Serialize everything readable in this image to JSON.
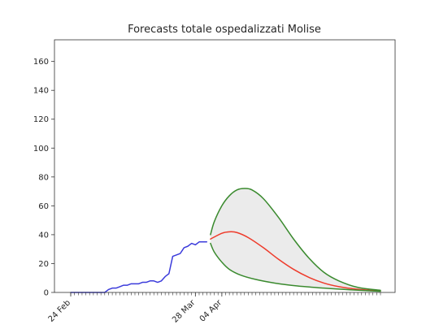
{
  "chart_data": {
    "type": "line",
    "title": "Forecasts totale ospedalizzati Molise",
    "xlabel": "",
    "ylabel": "",
    "ylim": [
      0,
      175
    ],
    "yticks": [
      0,
      20,
      40,
      60,
      80,
      100,
      120,
      140,
      160
    ],
    "x_start": "2020-02-24",
    "x_end": "2020-05-16",
    "xticks": [
      {
        "date": "2020-02-24",
        "label": "24 Feb"
      },
      {
        "date": "2020-03-28",
        "label": "28 Mar"
      },
      {
        "date": "2020-04-04",
        "label": "04 Apr"
      }
    ],
    "grid": false,
    "series": [
      {
        "role": "observed",
        "color": "#3b3bdb",
        "points": [
          [
            "2020-02-24",
            0
          ],
          [
            "2020-02-25",
            0
          ],
          [
            "2020-02-26",
            0
          ],
          [
            "2020-02-27",
            0
          ],
          [
            "2020-02-28",
            0
          ],
          [
            "2020-02-29",
            0
          ],
          [
            "2020-03-01",
            0
          ],
          [
            "2020-03-02",
            0
          ],
          [
            "2020-03-03",
            0
          ],
          [
            "2020-03-04",
            0
          ],
          [
            "2020-03-05",
            2
          ],
          [
            "2020-03-06",
            3
          ],
          [
            "2020-03-07",
            3
          ],
          [
            "2020-03-08",
            4
          ],
          [
            "2020-03-09",
            5
          ],
          [
            "2020-03-10",
            5
          ],
          [
            "2020-03-11",
            6
          ],
          [
            "2020-03-12",
            6
          ],
          [
            "2020-03-13",
            6
          ],
          [
            "2020-03-14",
            7
          ],
          [
            "2020-03-15",
            7
          ],
          [
            "2020-03-16",
            8
          ],
          [
            "2020-03-17",
            8
          ],
          [
            "2020-03-18",
            7
          ],
          [
            "2020-03-19",
            8
          ],
          [
            "2020-03-20",
            11
          ],
          [
            "2020-03-21",
            13
          ],
          [
            "2020-03-22",
            25
          ],
          [
            "2020-03-23",
            26
          ],
          [
            "2020-03-24",
            27
          ],
          [
            "2020-03-25",
            31
          ],
          [
            "2020-03-26",
            32
          ],
          [
            "2020-03-27",
            34
          ],
          [
            "2020-03-28",
            33
          ],
          [
            "2020-03-29",
            35
          ],
          [
            "2020-03-30",
            35
          ],
          [
            "2020-03-31",
            35
          ]
        ]
      },
      {
        "role": "forecast",
        "color": "#ee3b2b",
        "points": [
          [
            "2020-04-01",
            37
          ],
          [
            "2020-04-04",
            41
          ],
          [
            "2020-04-06",
            42
          ],
          [
            "2020-04-08",
            41.5
          ],
          [
            "2020-04-11",
            38
          ],
          [
            "2020-04-15",
            31
          ],
          [
            "2020-04-19",
            23
          ],
          [
            "2020-04-23",
            16
          ],
          [
            "2020-04-27",
            10.5
          ],
          [
            "2020-05-01",
            6.5
          ],
          [
            "2020-05-05",
            4
          ],
          [
            "2020-05-10",
            2.2
          ],
          [
            "2020-05-16",
            1
          ]
        ]
      },
      {
        "role": "upper",
        "color": "#3a8a2e",
        "points": [
          [
            "2020-04-01",
            40
          ],
          [
            "2020-04-02",
            49
          ],
          [
            "2020-04-04",
            60
          ],
          [
            "2020-04-06",
            67
          ],
          [
            "2020-04-08",
            71
          ],
          [
            "2020-04-10",
            72
          ],
          [
            "2020-04-12",
            71
          ],
          [
            "2020-04-15",
            65
          ],
          [
            "2020-04-19",
            52
          ],
          [
            "2020-04-23",
            37
          ],
          [
            "2020-04-27",
            24
          ],
          [
            "2020-05-01",
            14
          ],
          [
            "2020-05-05",
            8
          ],
          [
            "2020-05-10",
            3.5
          ],
          [
            "2020-05-16",
            1.5
          ]
        ]
      },
      {
        "role": "lower",
        "color": "#3a8a2e",
        "points": [
          [
            "2020-04-01",
            34
          ],
          [
            "2020-04-02",
            28
          ],
          [
            "2020-04-04",
            21
          ],
          [
            "2020-04-06",
            16
          ],
          [
            "2020-04-09",
            12
          ],
          [
            "2020-04-13",
            9
          ],
          [
            "2020-04-18",
            6.5
          ],
          [
            "2020-04-24",
            4.5
          ],
          [
            "2020-05-01",
            3
          ],
          [
            "2020-05-08",
            1.8
          ],
          [
            "2020-05-16",
            0.8
          ]
        ]
      }
    ],
    "band": {
      "between": [
        "upper",
        "lower"
      ],
      "fill": "#ebebeb"
    }
  }
}
